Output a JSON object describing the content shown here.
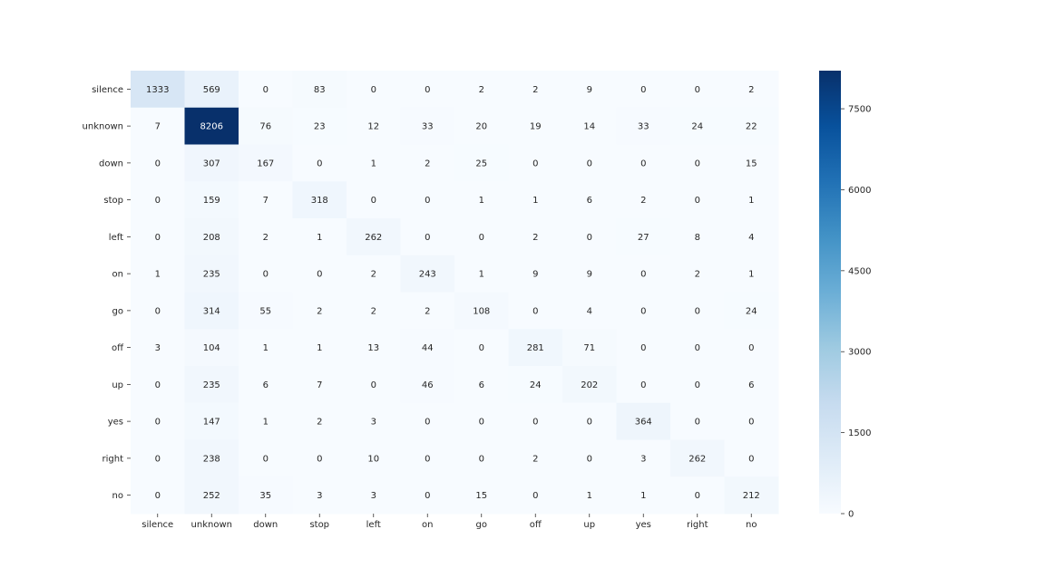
{
  "chart_data": {
    "type": "heatmap",
    "title": "",
    "xlabel": "",
    "ylabel": "",
    "row_labels": [
      "silence",
      "unknown",
      "down",
      "stop",
      "left",
      "on",
      "go",
      "off",
      "up",
      "yes",
      "right",
      "no"
    ],
    "col_labels": [
      "silence",
      "unknown",
      "down",
      "stop",
      "left",
      "on",
      "go",
      "off",
      "up",
      "yes",
      "right",
      "no"
    ],
    "values": [
      [
        1333,
        569,
        0,
        83,
        0,
        0,
        2,
        2,
        9,
        0,
        0,
        2
      ],
      [
        7,
        8206,
        76,
        23,
        12,
        33,
        20,
        19,
        14,
        33,
        24,
        22
      ],
      [
        0,
        307,
        167,
        0,
        1,
        2,
        25,
        0,
        0,
        0,
        0,
        15
      ],
      [
        0,
        159,
        7,
        318,
        0,
        0,
        1,
        1,
        6,
        2,
        0,
        1
      ],
      [
        0,
        208,
        2,
        1,
        262,
        0,
        0,
        2,
        0,
        27,
        8,
        4
      ],
      [
        1,
        235,
        0,
        0,
        2,
        243,
        1,
        9,
        9,
        0,
        2,
        1
      ],
      [
        0,
        314,
        55,
        2,
        2,
        2,
        108,
        0,
        4,
        0,
        0,
        24
      ],
      [
        3,
        104,
        1,
        1,
        13,
        44,
        0,
        281,
        71,
        0,
        0,
        0
      ],
      [
        0,
        235,
        6,
        7,
        0,
        46,
        6,
        24,
        202,
        0,
        0,
        6
      ],
      [
        0,
        147,
        1,
        2,
        3,
        0,
        0,
        0,
        0,
        364,
        0,
        0
      ],
      [
        0,
        238,
        0,
        0,
        10,
        0,
        0,
        2,
        0,
        3,
        262,
        0
      ],
      [
        0,
        252,
        35,
        3,
        3,
        0,
        15,
        0,
        1,
        1,
        0,
        212
      ]
    ],
    "colormap": "Blues",
    "vmin": 0,
    "vmax": 8206,
    "colorbar_ticks": [
      0,
      1500,
      3000,
      4500,
      6000,
      7500
    ],
    "colorbar_tick_labels": [
      "0",
      "1500",
      "3000",
      "4500",
      "6000",
      "7500"
    ],
    "annotations_color_dark": "#262626",
    "annotations_color_light": "#ffffff"
  }
}
